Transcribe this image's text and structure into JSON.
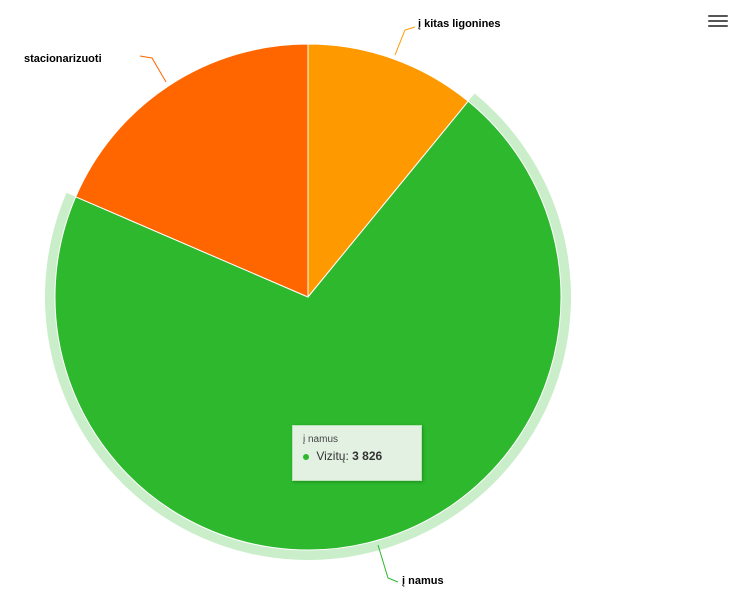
{
  "chart_data": {
    "type": "pie",
    "slices": [
      {
        "name": "į kitas ligonines",
        "value": 592,
        "color": "#ff9900"
      },
      {
        "name": "į namus",
        "value": 3826,
        "color": "#2db82d"
      },
      {
        "name": "stacionarizuoti",
        "value": 1004,
        "color": "#ff6600"
      }
    ],
    "hovered_slice": "į namus"
  },
  "tooltip": {
    "header": "į namus",
    "series_label": "Vizitų:",
    "value_text": "3 826"
  },
  "menu": {
    "icon": "hamburger-menu-icon"
  }
}
